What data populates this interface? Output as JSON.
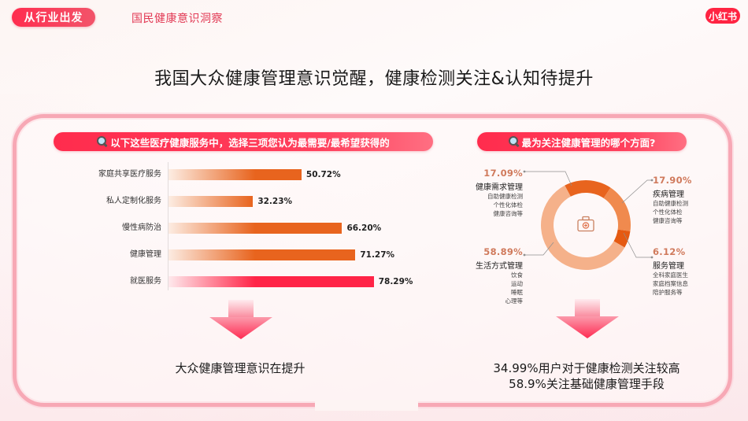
{
  "header": {
    "tag": "从行业出发",
    "section": "国民健康意识洞察",
    "brand": "小红书"
  },
  "main_title": "我国大众健康管理意识觉醒，健康检测关注&认知待提升",
  "left_panel": {
    "question": "以下这些医疗健康服务中，选择三项您认为最需要/最希望获得的",
    "conclusion": "大众健康管理意识在提升"
  },
  "right_panel": {
    "question": "最为关注健康管理的哪个方面?",
    "conclusion_line1": "34.99%用户对于健康检测关注较高",
    "conclusion_line2": "58.9%关注基础健康管理手段",
    "legend": [
      {
        "pct": "17.09%",
        "title": "健康需求管理",
        "subs": [
          "自助健康检测",
          "个性化体检",
          "健康咨询等"
        ]
      },
      {
        "pct": "17.90%",
        "title": "疾病管理",
        "subs": [
          "自助健康检测",
          "个性化体检",
          "健康咨询等"
        ]
      },
      {
        "pct": "58.89%",
        "title": "生活方式管理",
        "subs": [
          "饮食",
          "运动",
          "睡眠",
          "心理等"
        ]
      },
      {
        "pct": "6.12%",
        "title": "服务管理",
        "subs": [
          "全科家庭医生",
          "家庭档案信息",
          "陪护服务等"
        ]
      }
    ]
  },
  "colors": {
    "brand_red": "#ff2442",
    "pill_red": "#ff2c4d",
    "bar_orange": "#e8641e",
    "bar_red": "#ff2447",
    "donut_dark": "#e8641e",
    "donut_mid": "#f08a4e",
    "donut_light": "#f5b18a",
    "donut_accent": "#e55a12"
  },
  "chart_data": [
    {
      "type": "bar",
      "orientation": "horizontal",
      "title": "以下这些医疗健康服务中，选择三项您认为最需要/最希望获得的",
      "categories": [
        "家庭共享医疗服务",
        "私人定制化服务",
        "慢性病防治",
        "健康管理",
        "就医服务"
      ],
      "values": [
        50.72,
        32.23,
        66.2,
        71.27,
        78.29
      ],
      "labels": [
        "50.72%",
        "32.23%",
        "66.20%",
        "71.27%",
        "78.29%"
      ],
      "unit": "%",
      "xlabel": "",
      "ylabel": "",
      "grid": false,
      "highlight": "就医服务"
    },
    {
      "type": "pie",
      "style": "donut",
      "title": "最为关注健康管理的哪个方面?",
      "categories": [
        "健康需求管理",
        "疾病管理",
        "服务管理",
        "生活方式管理"
      ],
      "values": [
        17.09,
        17.9,
        6.12,
        58.89
      ],
      "labels": [
        "17.09%",
        "17.90%",
        "6.12%",
        "58.89%"
      ],
      "center_icon": "medical-kit-icon"
    }
  ]
}
